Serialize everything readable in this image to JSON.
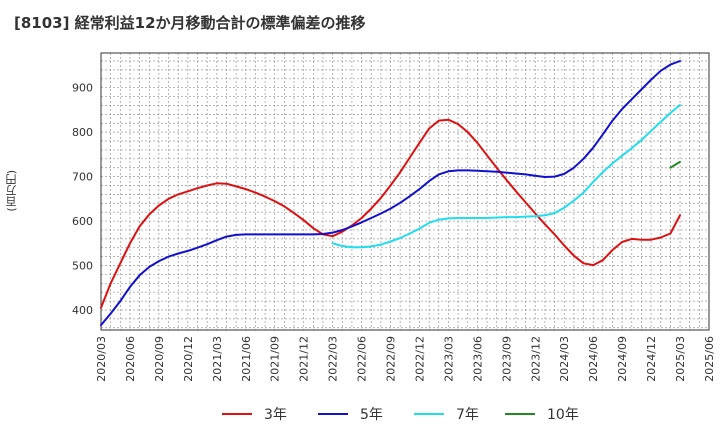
{
  "chart_data": {
    "type": "line",
    "title": "[8103]  経常利益12か月移動合計の標準偏差の推移",
    "ylabel": "(百万円)",
    "xlabel": "",
    "ylim": [
      355,
      978
    ],
    "yticks": [
      400,
      500,
      600,
      700,
      800,
      900
    ],
    "xticks": [
      "2020/03",
      "2020/06",
      "2020/09",
      "2020/12",
      "2021/03",
      "2021/06",
      "2021/09",
      "2021/12",
      "2022/03",
      "2022/06",
      "2022/09",
      "2022/12",
      "2023/03",
      "2023/06",
      "2023/09",
      "2023/12",
      "2024/03",
      "2024/06",
      "2024/09",
      "2024/12",
      "2025/03",
      "2025/06"
    ],
    "grid": true,
    "legend_position": "bottom",
    "series": [
      {
        "name": "3年",
        "color": "#dd1111",
        "x": [
          "2020/03",
          "2020/04",
          "2020/05",
          "2020/06",
          "2020/07",
          "2020/08",
          "2020/09",
          "2020/10",
          "2020/11",
          "2020/12",
          "2021/01",
          "2021/02",
          "2021/03",
          "2021/04",
          "2021/05",
          "2021/06",
          "2021/07",
          "2021/08",
          "2021/09",
          "2021/10",
          "2021/11",
          "2021/12",
          "2022/01",
          "2022/02",
          "2022/03",
          "2022/04",
          "2022/05",
          "2022/06",
          "2022/07",
          "2022/08",
          "2022/09",
          "2022/10",
          "2022/11",
          "2022/12",
          "2023/01",
          "2023/02",
          "2023/03",
          "2023/04",
          "2023/05",
          "2023/06",
          "2023/07",
          "2023/08",
          "2023/09",
          "2023/10",
          "2023/11",
          "2023/12",
          "2024/01",
          "2024/02",
          "2024/03",
          "2024/04",
          "2024/05",
          "2024/06",
          "2024/07",
          "2024/08",
          "2024/09",
          "2024/10",
          "2024/11",
          "2024/12",
          "2025/01",
          "2025/02",
          "2025/03"
        ],
        "values": [
          405,
          460,
          505,
          550,
          588,
          615,
          635,
          650,
          660,
          667,
          674,
          680,
          685,
          684,
          678,
          672,
          664,
          655,
          645,
          633,
          618,
          602,
          584,
          570,
          566,
          576,
          590,
          607,
          628,
          652,
          680,
          710,
          743,
          776,
          808,
          826,
          828,
          818,
          800,
          776,
          748,
          720,
          693,
          667,
          642,
          617,
          593,
          570,
          545,
          522,
          505,
          501,
          512,
          535,
          553,
          560,
          558,
          558,
          563,
          572,
          613
        ]
      },
      {
        "name": "5年",
        "color": "#1111cc",
        "x": [
          "2020/03",
          "2020/04",
          "2020/05",
          "2020/06",
          "2020/07",
          "2020/08",
          "2020/09",
          "2020/10",
          "2020/11",
          "2020/12",
          "2021/01",
          "2021/02",
          "2021/03",
          "2021/04",
          "2021/05",
          "2021/06",
          "2021/07",
          "2021/08",
          "2021/09",
          "2021/10",
          "2021/11",
          "2021/12",
          "2022/01",
          "2022/02",
          "2022/03",
          "2022/04",
          "2022/05",
          "2022/06",
          "2022/07",
          "2022/08",
          "2022/09",
          "2022/10",
          "2022/11",
          "2022/12",
          "2023/01",
          "2023/02",
          "2023/03",
          "2023/04",
          "2023/05",
          "2023/06",
          "2023/07",
          "2023/08",
          "2023/09",
          "2023/10",
          "2023/11",
          "2023/12",
          "2024/01",
          "2024/02",
          "2024/03",
          "2024/04",
          "2024/05",
          "2024/06",
          "2024/07",
          "2024/08",
          "2024/09",
          "2024/10",
          "2024/11",
          "2024/12",
          "2025/01",
          "2025/02",
          "2025/03"
        ],
        "values": [
          366,
          392,
          420,
          452,
          478,
          497,
          510,
          520,
          527,
          533,
          540,
          548,
          557,
          565,
          569,
          570,
          570,
          570,
          570,
          570,
          570,
          570,
          570,
          571,
          574,
          580,
          588,
          597,
          607,
          617,
          628,
          641,
          656,
          672,
          690,
          705,
          712,
          714,
          714,
          713,
          712,
          711,
          709,
          707,
          705,
          702,
          699,
          700,
          706,
          720,
          740,
          765,
          795,
          826,
          852,
          874,
          896,
          918,
          938,
          952,
          960
        ]
      },
      {
        "name": "7年",
        "color": "#22ddee",
        "x": [
          "2022/03",
          "2022/04",
          "2022/05",
          "2022/06",
          "2022/07",
          "2022/08",
          "2022/09",
          "2022/10",
          "2022/11",
          "2022/12",
          "2023/01",
          "2023/02",
          "2023/03",
          "2023/04",
          "2023/05",
          "2023/06",
          "2023/07",
          "2023/08",
          "2023/09",
          "2023/10",
          "2023/11",
          "2023/12",
          "2024/01",
          "2024/02",
          "2024/03",
          "2024/04",
          "2024/05",
          "2024/06",
          "2024/07",
          "2024/08",
          "2024/09",
          "2024/10",
          "2024/11",
          "2024/12",
          "2025/01",
          "2025/02",
          "2025/03"
        ],
        "values": [
          550,
          544,
          541,
          541,
          543,
          547,
          554,
          562,
          572,
          583,
          596,
          603,
          606,
          607,
          607,
          607,
          607,
          608,
          609,
          609,
          610,
          611,
          613,
          618,
          630,
          646,
          664,
          688,
          710,
          730,
          747,
          764,
          782,
          803,
          823,
          843,
          861
        ]
      },
      {
        "name": "10年",
        "color": "#228822",
        "x": [
          "2025/02",
          "2025/03"
        ],
        "values": [
          720,
          733
        ]
      }
    ]
  }
}
